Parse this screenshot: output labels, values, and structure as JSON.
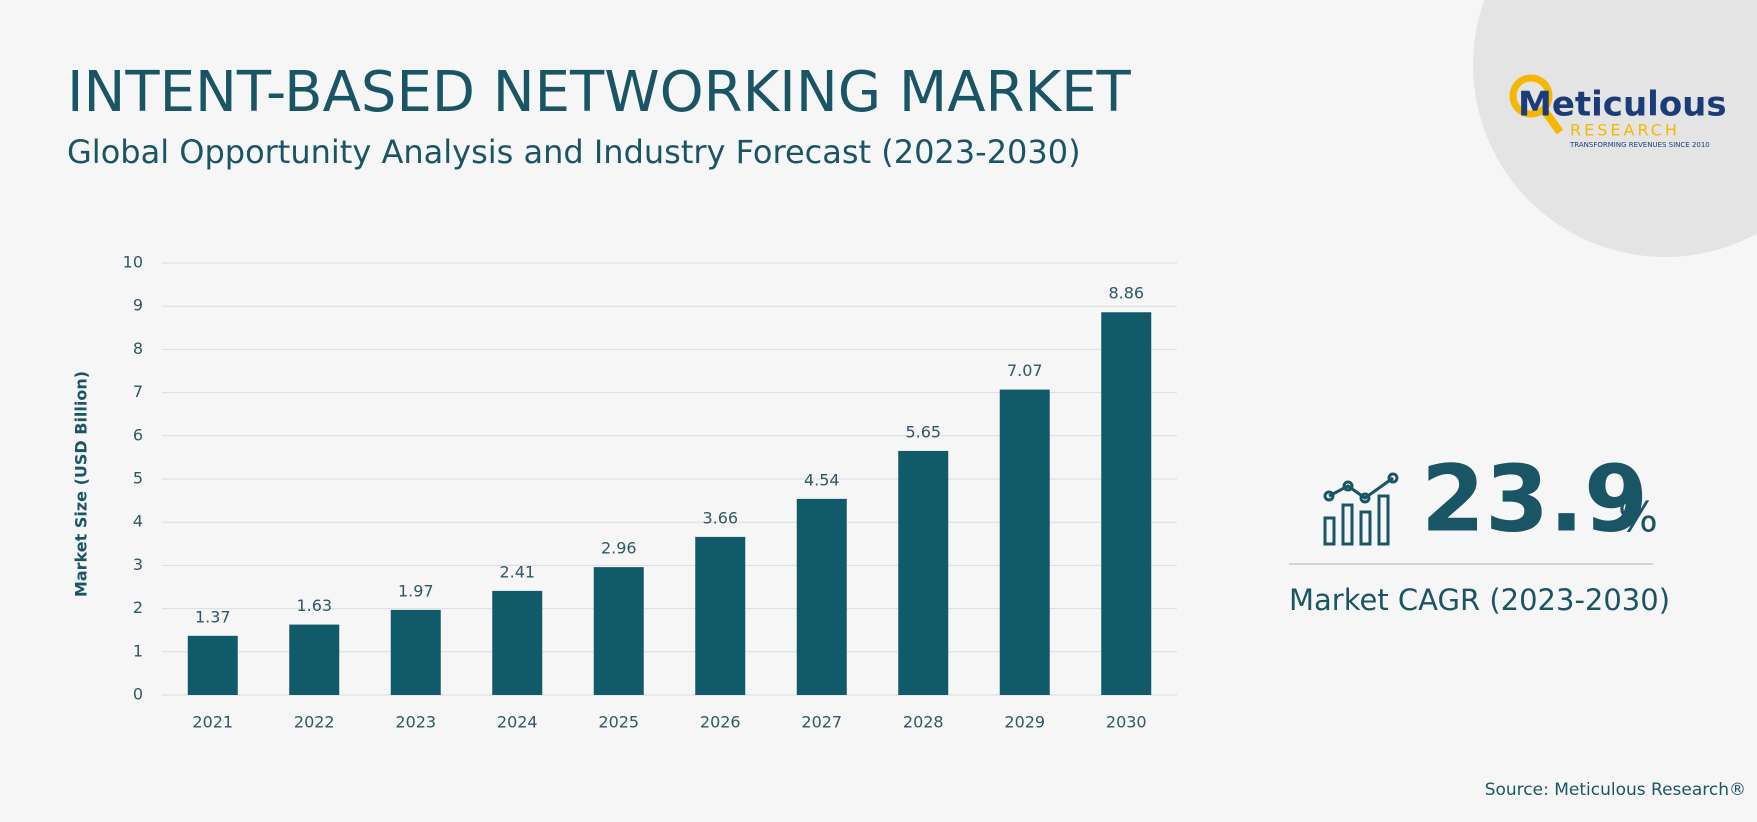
{
  "header": {
    "title": "INTENT-BASED NETWORKING MARKET",
    "subtitle": "Global Opportunity Analysis and Industry Forecast (2023-2030)"
  },
  "logo": {
    "name": "Meticulous",
    "sub": "RESEARCH",
    "tagline": "TRANSFORMING REVENUES SINCE 2010"
  },
  "chart_data": {
    "type": "bar",
    "y_label": "Market Size (USD Billion)",
    "categories": [
      "2021",
      "2022",
      "2023",
      "2024",
      "2025",
      "2026",
      "2027",
      "2028",
      "2029",
      "2030"
    ],
    "values": [
      1.37,
      1.63,
      1.97,
      2.41,
      2.96,
      3.66,
      4.54,
      5.65,
      7.07,
      8.86
    ],
    "color": "#115a6a",
    "ylim": [
      0,
      10
    ],
    "yticks": [
      0,
      1,
      2,
      3,
      4,
      5,
      6,
      7,
      8,
      9,
      10
    ],
    "grid": true
  },
  "cagr": {
    "value": "23.9",
    "unit": "%",
    "label": "Market CAGR (2023-2030)"
  },
  "source": "Source: Meticulous Research®"
}
